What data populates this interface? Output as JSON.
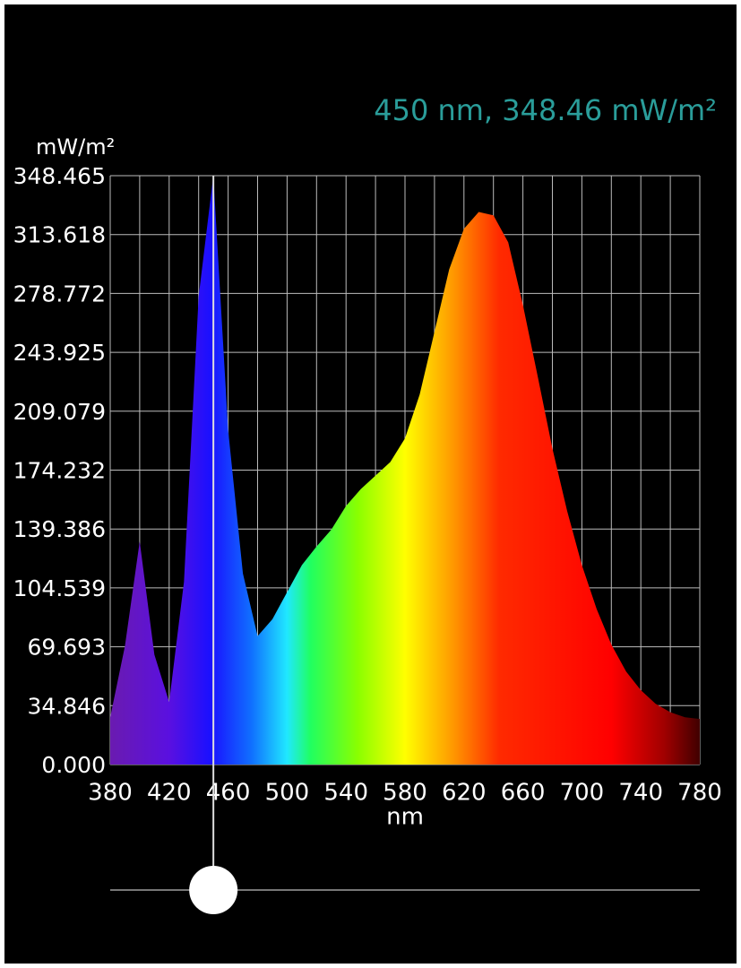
{
  "chart_data": {
    "type": "area",
    "readout": "450 nm, 348.46 mW/m²",
    "cursor_x": 450,
    "ylabel": "mW/m²",
    "xlabel": "nm",
    "x": [
      380,
      390,
      400,
      410,
      420,
      430,
      440,
      450,
      460,
      470,
      480,
      490,
      500,
      510,
      520,
      530,
      540,
      550,
      560,
      570,
      580,
      590,
      600,
      610,
      620,
      630,
      640,
      650,
      660,
      670,
      680,
      690,
      700,
      710,
      720,
      730,
      740,
      750,
      760,
      770,
      780
    ],
    "values": [
      28,
      70,
      132,
      65,
      37,
      108,
      277,
      348.46,
      198,
      113,
      76,
      86,
      102,
      118,
      129,
      139,
      153,
      163,
      171,
      179,
      193,
      219,
      256,
      293,
      317,
      327,
      325,
      309,
      272,
      230,
      187,
      150,
      118,
      92,
      71,
      55,
      44,
      36,
      31,
      28,
      27
    ],
    "xlim": [
      380,
      780
    ],
    "ylim": [
      0,
      348.465
    ],
    "xticks": [
      380,
      420,
      460,
      500,
      540,
      580,
      620,
      660,
      700,
      740,
      780
    ],
    "xminorticks": [
      400,
      440,
      480,
      520,
      560,
      600,
      640,
      680,
      720,
      760
    ],
    "yticks": [
      {
        "value": 0,
        "label": "0.000"
      },
      34.846,
      69.693,
      104.539,
      139.386,
      174.232,
      209.079,
      243.925,
      278.772,
      313.618,
      348.465
    ],
    "grid": true
  }
}
